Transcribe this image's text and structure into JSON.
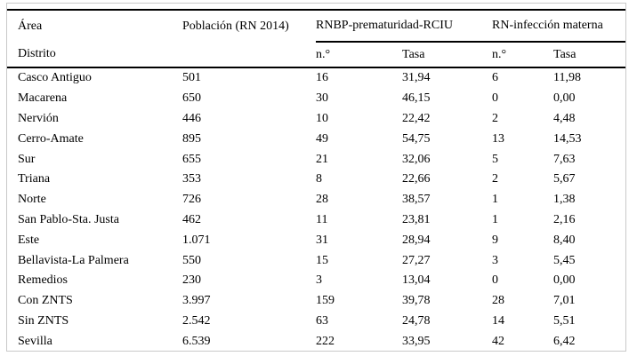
{
  "table": {
    "header": {
      "area": "Área",
      "district": "Distrito",
      "population": "Población (RN 2014)",
      "group1": "RNBP-prematuridad-RCIU",
      "group2": "RN-infección materna",
      "n1": "n.°",
      "rate1": "Tasa",
      "n2": "n.°",
      "rate2": "Tasa"
    },
    "rows": [
      {
        "district": "Casco Antiguo",
        "population": "501",
        "rnbp_n": "16",
        "rnbp_rate": "31,94",
        "inf_n": "6",
        "inf_rate": "11,98"
      },
      {
        "district": "Macarena",
        "population": "650",
        "rnbp_n": "30",
        "rnbp_rate": "46,15",
        "inf_n": "0",
        "inf_rate": "0,00"
      },
      {
        "district": "Nervión",
        "population": "446",
        "rnbp_n": "10",
        "rnbp_rate": "22,42",
        "inf_n": "2",
        "inf_rate": "4,48"
      },
      {
        "district": "Cerro-Amate",
        "population": "895",
        "rnbp_n": "49",
        "rnbp_rate": "54,75",
        "inf_n": "13",
        "inf_rate": "14,53"
      },
      {
        "district": "Sur",
        "population": "655",
        "rnbp_n": "21",
        "rnbp_rate": "32,06",
        "inf_n": "5",
        "inf_rate": "7,63"
      },
      {
        "district": "Triana",
        "population": "353",
        "rnbp_n": "8",
        "rnbp_rate": "22,66",
        "inf_n": "2",
        "inf_rate": "5,67"
      },
      {
        "district": "Norte",
        "population": "726",
        "rnbp_n": "28",
        "rnbp_rate": "38,57",
        "inf_n": "1",
        "inf_rate": "1,38"
      },
      {
        "district": "San Pablo-Sta. Justa",
        "population": "462",
        "rnbp_n": "11",
        "rnbp_rate": "23,81",
        "inf_n": "1",
        "inf_rate": "2,16"
      },
      {
        "district": "Este",
        "population": "1.071",
        "rnbp_n": "31",
        "rnbp_rate": "28,94",
        "inf_n": "9",
        "inf_rate": "8,40"
      },
      {
        "district": "Bellavista-La Palmera",
        "population": "550",
        "rnbp_n": "15",
        "rnbp_rate": "27,27",
        "inf_n": "3",
        "inf_rate": "5,45"
      },
      {
        "district": "Remedios",
        "population": "230",
        "rnbp_n": "3",
        "rnbp_rate": "13,04",
        "inf_n": "0",
        "inf_rate": "0,00"
      },
      {
        "district": "Con ZNTS",
        "population": "3.997",
        "rnbp_n": "159",
        "rnbp_rate": "39,78",
        "inf_n": "28",
        "inf_rate": "7,01"
      },
      {
        "district": "Sin ZNTS",
        "population": "2.542",
        "rnbp_n": "63",
        "rnbp_rate": "24,78",
        "inf_n": "14",
        "inf_rate": "5,51"
      },
      {
        "district": "Sevilla",
        "population": "6.539",
        "rnbp_n": "222",
        "rnbp_rate": "33,95",
        "inf_n": "42",
        "inf_rate": "6,42"
      }
    ]
  }
}
